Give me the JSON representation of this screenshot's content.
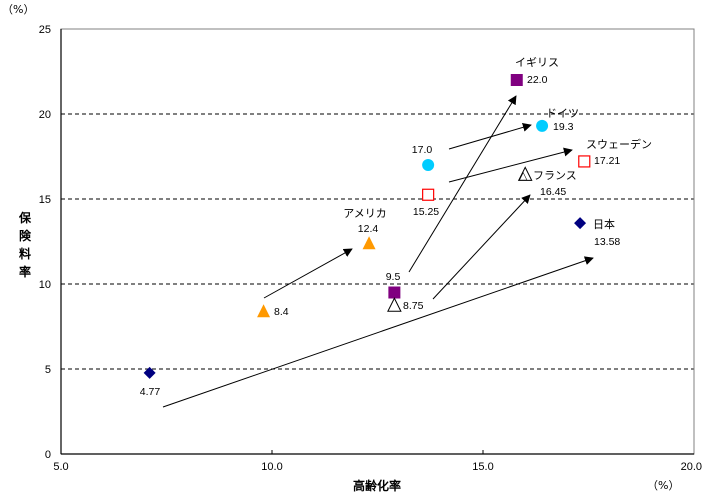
{
  "chart_data": {
    "type": "scatter",
    "title": "",
    "xlabel": "高齢化率",
    "ylabel": "保険料率",
    "x_unit": "（%）",
    "y_unit": "（%）",
    "xlim": [
      5.0,
      20.0
    ],
    "ylim": [
      0,
      25
    ],
    "x_ticks": [
      "5.0",
      "10.0",
      "15.0",
      "20.0"
    ],
    "y_ticks": [
      "0",
      "5",
      "10",
      "15",
      "20",
      "25"
    ],
    "grid": "horizontal-dashed",
    "series": [
      {
        "name": "日本",
        "marker": "diamond",
        "color": "#000080",
        "from": {
          "x": 7.1,
          "y": 4.77,
          "label": "4.77"
        },
        "to": {
          "x": 17.3,
          "y": 13.58,
          "label": "13.58"
        }
      },
      {
        "name": "アメリカ",
        "marker": "triangle",
        "color": "#ff9900",
        "from": {
          "x": 9.8,
          "y": 8.4,
          "label": "8.4"
        },
        "to": {
          "x": 12.3,
          "y": 12.4,
          "label": "12.4"
        }
      },
      {
        "name": "イギリス",
        "marker": "square",
        "color": "#800080",
        "from": {
          "x": 12.9,
          "y": 9.5,
          "label": "9.5"
        },
        "to": {
          "x": 15.8,
          "y": 22.0,
          "label": "22.0"
        }
      },
      {
        "name": "ドイツ",
        "marker": "circle",
        "color": "#00ccff",
        "from": {
          "x": 13.7,
          "y": 17.0,
          "label": "17.0"
        },
        "to": {
          "x": 16.4,
          "y": 19.3,
          "label": "19.3"
        }
      },
      {
        "name": "スウェーデン",
        "marker": "open-square",
        "color": "#ff0000",
        "from": {
          "x": 13.7,
          "y": 15.25,
          "label": "15.25"
        },
        "to": {
          "x": 17.4,
          "y": 17.21,
          "label": "17.21"
        }
      },
      {
        "name": "フランス",
        "marker": "open-triangle",
        "color": "#000000",
        "from": {
          "x": 12.9,
          "y": 8.75,
          "label": "8.75"
        },
        "to": {
          "x": 16.0,
          "y": 16.45,
          "label": "16.45"
        }
      }
    ],
    "legend": "none"
  },
  "labels": {
    "france_name_prefix": "△"
  }
}
